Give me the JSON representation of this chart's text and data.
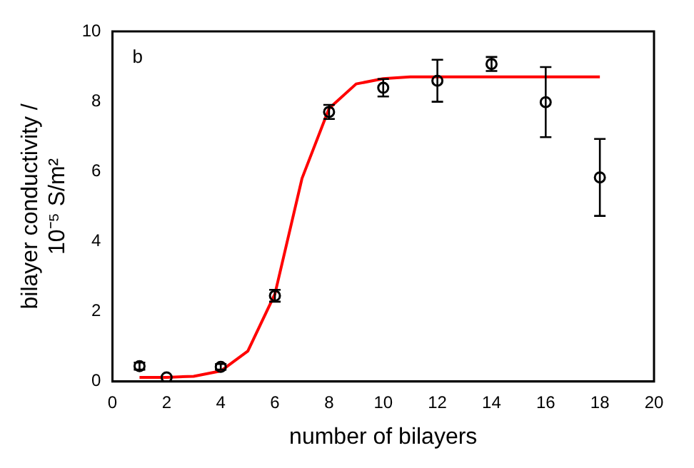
{
  "chart_data": {
    "type": "scatter",
    "xlabel": "number of bilayers",
    "ylabel": "bilayer conductivity / 10⁻⁵ S/m²",
    "annotations": [
      "b"
    ],
    "xlim": [
      0,
      20
    ],
    "ylim": [
      0,
      10
    ],
    "xticks": [
      0,
      2,
      4,
      6,
      8,
      10,
      12,
      14,
      16,
      18,
      20
    ],
    "yticks": [
      0,
      2,
      4,
      6,
      8,
      10
    ],
    "grid": false,
    "legend": false,
    "series": [
      {
        "color": "#000000",
        "marker": "circle",
        "x": [
          1,
          2,
          4,
          6,
          8,
          10,
          12,
          14,
          16,
          18
        ],
        "values": [
          0.44,
          0.12,
          0.42,
          2.45,
          7.7,
          8.39,
          8.59,
          9.07,
          7.98,
          5.83
        ],
        "errors": [
          0.1,
          null,
          0.08,
          0.17,
          0.2,
          0.25,
          0.6,
          0.2,
          1.0,
          1.1
        ]
      },
      {
        "type": "line",
        "color": "#ff0000",
        "marker": "none",
        "x": [
          1,
          2,
          3,
          4,
          5,
          6,
          7,
          8,
          9,
          10,
          11,
          12,
          13,
          14,
          15,
          16,
          17,
          18
        ],
        "values": [
          0.12,
          0.12,
          0.15,
          0.3,
          0.87,
          2.5,
          5.8,
          7.8,
          8.5,
          8.65,
          8.7,
          8.7,
          8.7,
          8.7,
          8.7,
          8.7,
          8.7,
          8.7
        ]
      }
    ]
  }
}
